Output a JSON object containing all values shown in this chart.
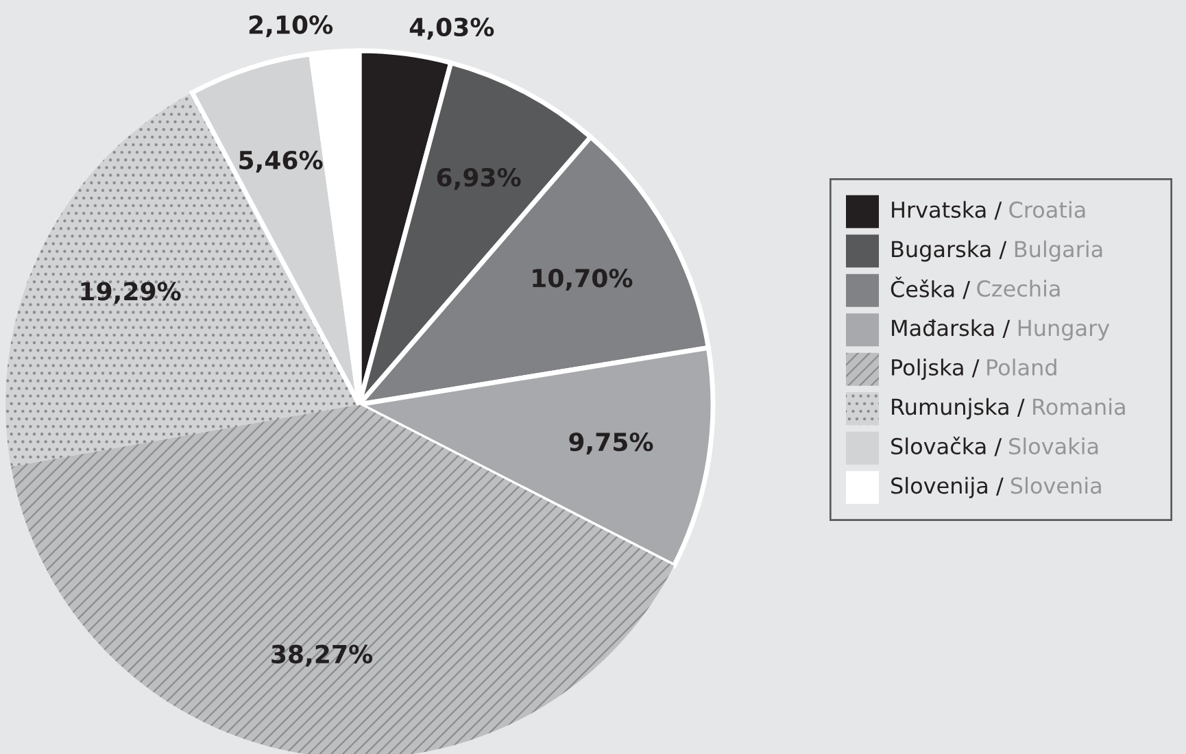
{
  "chart_data": {
    "type": "pie",
    "categories": [
      "Hrvatska / Croatia",
      "Bugarska / Bulgaria",
      "Češka / Czechia",
      "Mađarska / Hungary",
      "Poljska / Poland",
      "Rumunjska / Romania",
      "Slovačka / Slovakia",
      "Slovenija / Slovenia"
    ],
    "values": [
      4.03,
      6.93,
      10.7,
      9.75,
      38.27,
      19.29,
      5.46,
      2.1
    ],
    "value_labels": [
      "4,03%",
      "6,93%",
      "10,70%",
      "9,75%",
      "38,27%",
      "19,29%",
      "5,46%",
      "2,10%"
    ],
    "colors": [
      "#231f20",
      "#58595b",
      "#808285",
      "#a7a9ac",
      "#bcbec0",
      "#d1d3d4",
      "#d1d3d4",
      "#ffffff"
    ],
    "legend": "right"
  }
}
